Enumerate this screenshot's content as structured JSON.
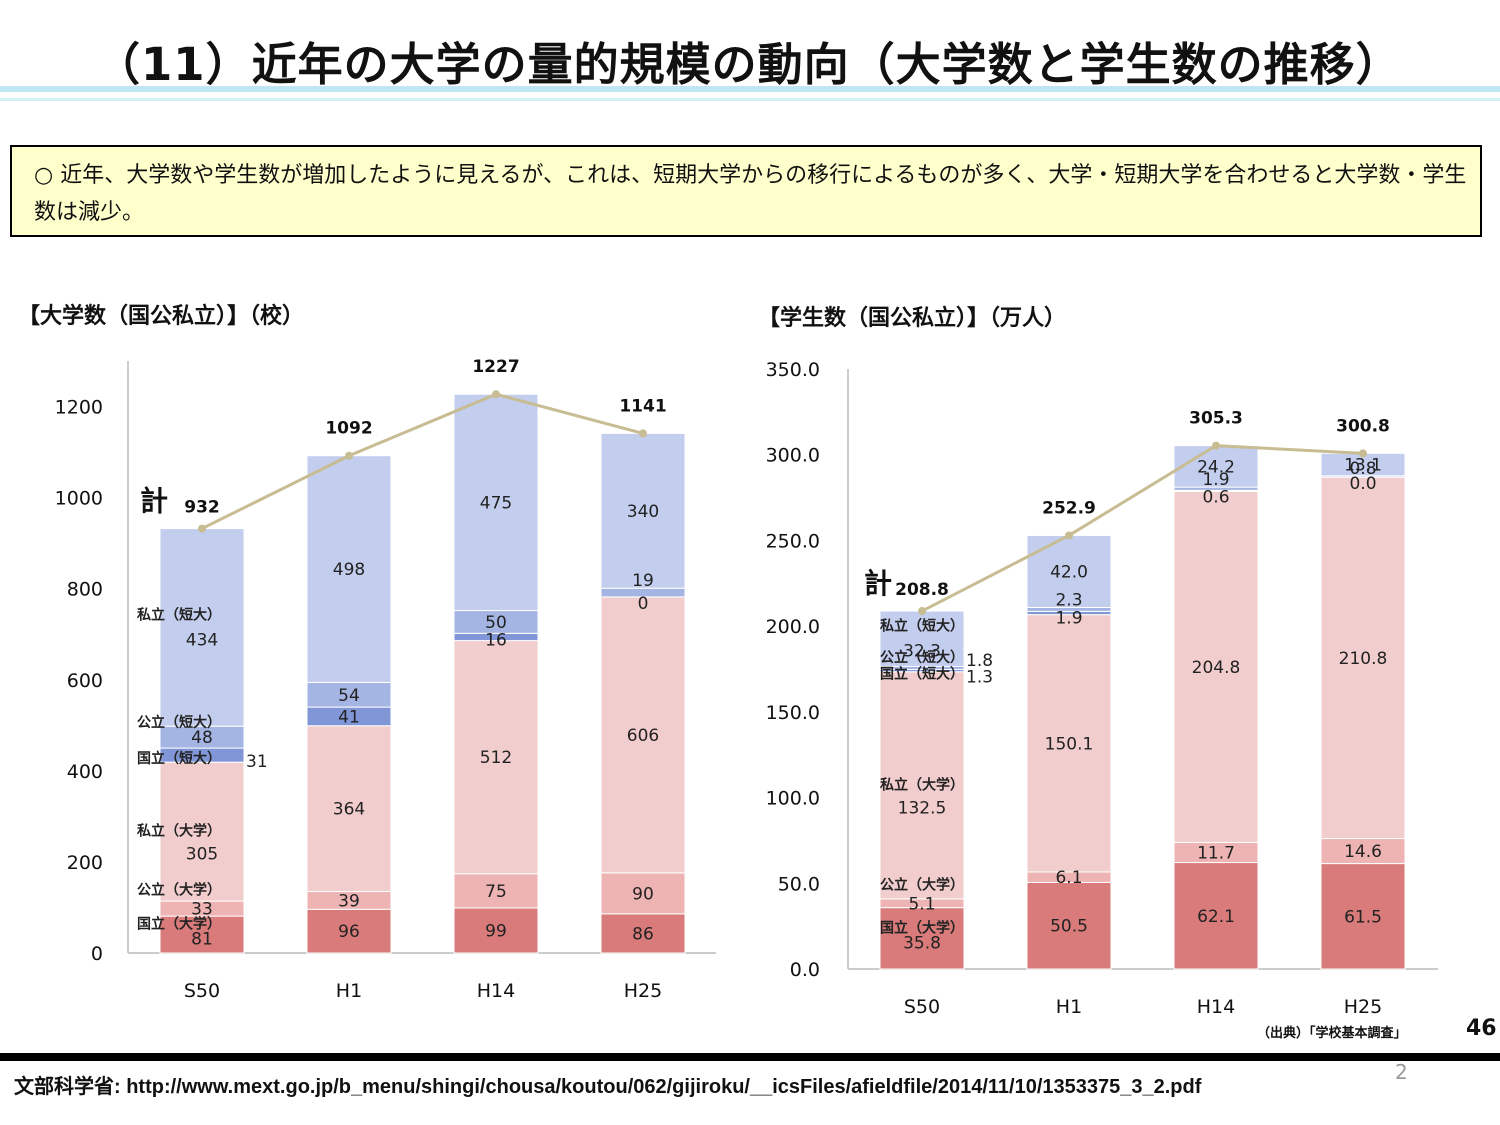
{
  "title": "（11）近年の大学の量的規模の動向（大学数と学生数の推移）",
  "note": "○ 近年、大学数や学生数が増加したように見えるが、これは、短期大学からの移行によるものが多く、大学・短期大学を合わせると大学数・学生数は減少。",
  "source_note": "（出典）「学校基本調査」",
  "page_number": "46",
  "footer": "文部科学省: http://www.mext.go.jp/b_menu/shingi/chousa/koutou/062/gijiroku/__icsFiles/afieldfile/2014/11/10/1353375_3_2.pdf",
  "slide_number": "2",
  "colors": {
    "national_univ": "#d97b7b",
    "public_univ": "#eeb3b3",
    "private_univ": "#f2cdcd",
    "national_jc": "#8096d6",
    "public_jc": "#a4b4e3",
    "private_jc": "#c3cdee",
    "total_line": "#c8bc92"
  },
  "chart_data": [
    {
      "type": "bar",
      "stacked": true,
      "title": "【大学数（国公私立）】（校）",
      "categories": [
        "S50",
        "H1",
        "H14",
        "H25"
      ],
      "ylim": [
        0,
        1300
      ],
      "yticks": [
        "0",
        "200",
        "400",
        "600",
        "800",
        "1000",
        "1200"
      ],
      "total_label": "計",
      "series": [
        {
          "name": "国立（大学）",
          "values": [
            81,
            96,
            99,
            86
          ],
          "labels": [
            "81",
            "96",
            "99",
            "86"
          ]
        },
        {
          "name": "公立（大学）",
          "values": [
            33,
            39,
            75,
            90
          ],
          "labels": [
            "33",
            "39",
            "75",
            "90"
          ]
        },
        {
          "name": "私立（大学）",
          "values": [
            305,
            364,
            512,
            606
          ],
          "labels": [
            "305",
            "364",
            "512",
            "606"
          ]
        },
        {
          "name": "国立（短大）",
          "values": [
            31,
            41,
            16,
            0
          ],
          "labels": [
            "31",
            "41",
            "16",
            "0"
          ]
        },
        {
          "name": "公立（短大）",
          "values": [
            48,
            54,
            50,
            19
          ],
          "labels": [
            "48",
            "54",
            "50",
            "19"
          ]
        },
        {
          "name": "私立（短大）",
          "values": [
            434,
            498,
            475,
            340
          ],
          "labels": [
            "434",
            "498",
            "475",
            "340"
          ]
        }
      ],
      "totals": [
        932,
        1092,
        1227,
        1141
      ],
      "total_labels": [
        "932",
        "1092",
        "1227",
        "1141"
      ]
    },
    {
      "type": "bar",
      "stacked": true,
      "title": "【学生数（国公私立）】（万人）",
      "categories": [
        "S50",
        "H1",
        "H14",
        "H25"
      ],
      "ylim": [
        0,
        350
      ],
      "yticks": [
        "0.0",
        "50.0",
        "100.0",
        "150.0",
        "200.0",
        "250.0",
        "300.0",
        "350.0"
      ],
      "total_label": "計",
      "series": [
        {
          "name": "国立（大学）",
          "values": [
            35.8,
            50.5,
            62.1,
            61.5
          ],
          "labels": [
            "35.8",
            "50.5",
            "62.1",
            "61.5"
          ]
        },
        {
          "name": "公立（大学）",
          "values": [
            5.1,
            6.1,
            11.7,
            14.6
          ],
          "labels": [
            "5.1",
            "6.1",
            "11.7",
            "14.6"
          ]
        },
        {
          "name": "私立（大学）",
          "values": [
            132.5,
            150.1,
            204.8,
            210.8
          ],
          "labels": [
            "132.5",
            "150.1",
            "204.8",
            "210.8"
          ]
        },
        {
          "name": "国立（短大）",
          "values": [
            1.3,
            1.9,
            0.6,
            0.0
          ],
          "labels": [
            "1.3",
            "1.9",
            "0.6",
            "0.0"
          ]
        },
        {
          "name": "公立（短大）",
          "values": [
            1.8,
            2.3,
            1.9,
            0.8
          ],
          "labels": [
            "1.8",
            "2.3",
            "1.9",
            "0.8"
          ]
        },
        {
          "name": "私立（短大）",
          "values": [
            32.3,
            42.0,
            24.2,
            13.1
          ],
          "labels": [
            "32.3",
            "42.0",
            "24.2",
            "13.1"
          ]
        }
      ],
      "totals": [
        208.8,
        252.9,
        305.3,
        300.8
      ],
      "total_labels": [
        "208.8",
        "252.9",
        "305.3",
        "300.8"
      ]
    }
  ]
}
